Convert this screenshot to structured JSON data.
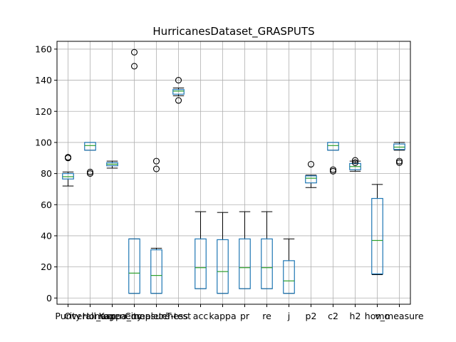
{
  "chart_data": {
    "type": "boxplot",
    "title": "HurricanesDataset_GRASPUTS",
    "xlabel": "",
    "ylabel": "",
    "ylim": [
      -4,
      165
    ],
    "yticks": [
      0,
      20,
      40,
      60,
      80,
      100,
      120,
      140,
      160
    ],
    "grid": true,
    "categories": [
      "Purity",
      "Overall_acc",
      "Homogeneity",
      "Kappa_measure",
      "Completeness",
      "T-test",
      "acc",
      "kappa",
      "pr",
      "re",
      "j",
      "p2",
      "c2",
      "h2",
      "homo",
      "v_measure"
    ],
    "tick_labels": [
      "Purity",
      "Overall_acc",
      "Homogeneity",
      "Kappa_measure",
      "Completeness",
      "T-test",
      "acc",
      "kappa",
      "pr",
      "re",
      "j",
      "p2",
      "c2",
      "h2",
      "homo",
      "v_measure"
    ],
    "boxes": [
      {
        "whislo": 72,
        "q1": 76.5,
        "med": 78,
        "q3": 80,
        "whishi": 81,
        "fliers": [
          90,
          90.5
        ]
      },
      {
        "whislo": 95,
        "q1": 95,
        "med": 98,
        "q3": 100,
        "whishi": 100,
        "fliers": [
          80,
          81
        ]
      },
      {
        "whislo": 83.5,
        "q1": 85,
        "med": 86,
        "q3": 87,
        "whishi": 88,
        "fliers": []
      },
      {
        "whislo": 3,
        "q1": 3,
        "med": 16,
        "q3": 38,
        "whishi": 38,
        "fliers": [
          149,
          158
        ]
      },
      {
        "whislo": 3,
        "q1": 3,
        "med": 14.5,
        "q3": 31,
        "whishi": 32,
        "fliers": [
          83,
          88
        ]
      },
      {
        "whislo": 130,
        "q1": 131,
        "med": 133,
        "q3": 134,
        "whishi": 135,
        "fliers": [
          127,
          140
        ]
      },
      {
        "whislo": 6,
        "q1": 6,
        "med": 19.5,
        "q3": 38,
        "whishi": 55.5,
        "fliers": []
      },
      {
        "whislo": 3,
        "q1": 3,
        "med": 17,
        "q3": 37.5,
        "whishi": 55,
        "fliers": []
      },
      {
        "whislo": 6,
        "q1": 6,
        "med": 19.5,
        "q3": 38,
        "whishi": 55.5,
        "fliers": []
      },
      {
        "whislo": 6,
        "q1": 6,
        "med": 19.5,
        "q3": 38,
        "whishi": 55.5,
        "fliers": []
      },
      {
        "whislo": 3,
        "q1": 3,
        "med": 11,
        "q3": 24,
        "whishi": 38,
        "fliers": []
      },
      {
        "whislo": 71,
        "q1": 74,
        "med": 77,
        "q3": 78.5,
        "whishi": 79,
        "fliers": [
          86
        ]
      },
      {
        "whislo": 95,
        "q1": 95,
        "med": 98,
        "q3": 100,
        "whishi": 100,
        "fliers": [
          81.5,
          82.5
        ]
      },
      {
        "whislo": 81.5,
        "q1": 82.5,
        "med": 84.5,
        "q3": 86.5,
        "whishi": 88,
        "fliers": [
          87,
          88.5
        ]
      },
      {
        "whislo": 15,
        "q1": 15.5,
        "med": 37,
        "q3": 64,
        "whishi": 73,
        "fliers": []
      },
      {
        "whislo": 95,
        "q1": 95.5,
        "med": 97,
        "q3": 99,
        "whishi": 100,
        "fliers": [
          87,
          88
        ]
      }
    ]
  }
}
